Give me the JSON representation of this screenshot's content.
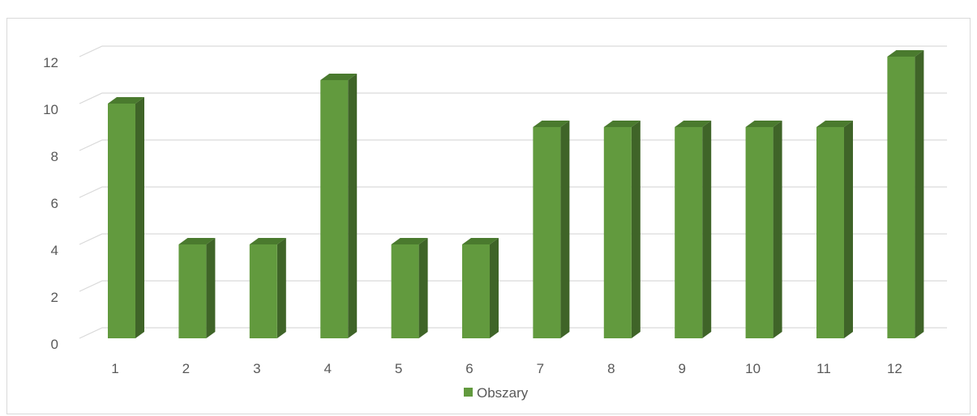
{
  "chart_data": {
    "type": "bar",
    "categories": [
      "1",
      "2",
      "3",
      "4",
      "5",
      "6",
      "7",
      "8",
      "9",
      "10",
      "11",
      "12"
    ],
    "series": [
      {
        "name": "Obszary",
        "values": [
          10,
          4,
          4,
          11,
          4,
          4,
          9,
          9,
          9,
          9,
          9,
          12
        ]
      }
    ],
    "y_ticks": [
      "0",
      "2",
      "4",
      "6",
      "8",
      "10",
      "12"
    ],
    "ylim": [
      0,
      12
    ],
    "y_tick_step": 2,
    "grid": true,
    "legend_position": "bottom",
    "three_d": true,
    "colors": {
      "bar_front": "#629a3e",
      "bar_side": "#3f6428",
      "bar_top": "#4a7a2e",
      "legend_swatch": "#629a3e",
      "grid": "#d9d9d9",
      "text": "#595959"
    }
  }
}
